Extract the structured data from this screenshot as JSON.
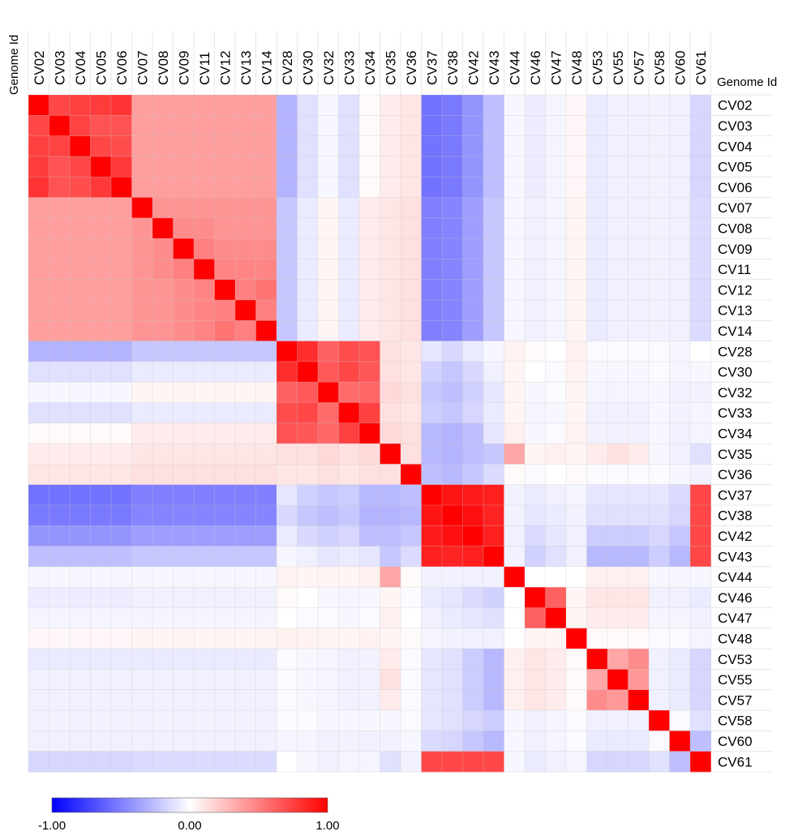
{
  "chart_data": {
    "type": "heatmap",
    "title": "",
    "xlabel": "Genome Id",
    "ylabel": "Genome Id",
    "labels": [
      "CV02",
      "CV03",
      "CV04",
      "CV05",
      "CV06",
      "CV07",
      "CV08",
      "CV09",
      "CV11",
      "CV12",
      "CV13",
      "CV14",
      "CV28",
      "CV30",
      "CV32",
      "CV33",
      "CV34",
      "CV35",
      "CV36",
      "CV37",
      "CV38",
      "CV42",
      "CV43",
      "CV44",
      "CV46",
      "CV47",
      "CV48",
      "CV53",
      "CV55",
      "CV57",
      "CV58",
      "CV60",
      "CV61"
    ],
    "color_scale": {
      "min": -1.0,
      "mid": 0.0,
      "max": 1.0,
      "min_label": "-1.00",
      "mid_label": "0.00",
      "max_label": "1.00",
      "min_color": "#0000ff",
      "mid_color": "#ffffff",
      "max_color": "#ff0000"
    },
    "values": [
      [
        1.0,
        0.72,
        0.75,
        0.77,
        0.8,
        0.38,
        0.38,
        0.38,
        0.38,
        0.38,
        0.38,
        0.38,
        -0.3,
        -0.12,
        -0.03,
        -0.12,
        0.02,
        0.08,
        0.1,
        -0.55,
        -0.52,
        -0.42,
        -0.25,
        -0.03,
        -0.07,
        -0.04,
        0.03,
        -0.08,
        -0.06,
        -0.06,
        -0.05,
        -0.06,
        -0.16
      ],
      [
        0.72,
        1.0,
        0.74,
        0.68,
        0.68,
        0.38,
        0.38,
        0.38,
        0.38,
        0.38,
        0.38,
        0.38,
        -0.3,
        -0.12,
        -0.03,
        -0.12,
        0.02,
        0.08,
        0.1,
        -0.55,
        -0.52,
        -0.42,
        -0.25,
        -0.03,
        -0.07,
        -0.04,
        0.03,
        -0.08,
        -0.06,
        -0.06,
        -0.05,
        -0.06,
        -0.16
      ],
      [
        0.75,
        0.74,
        1.0,
        0.72,
        0.7,
        0.38,
        0.38,
        0.38,
        0.38,
        0.38,
        0.38,
        0.38,
        -0.3,
        -0.12,
        -0.03,
        -0.12,
        0.02,
        0.08,
        0.1,
        -0.55,
        -0.52,
        -0.42,
        -0.25,
        -0.03,
        -0.07,
        -0.04,
        0.03,
        -0.08,
        -0.06,
        -0.06,
        -0.05,
        -0.06,
        -0.16
      ],
      [
        0.77,
        0.68,
        0.72,
        1.0,
        0.78,
        0.38,
        0.38,
        0.38,
        0.38,
        0.38,
        0.38,
        0.38,
        -0.3,
        -0.12,
        -0.03,
        -0.12,
        0.02,
        0.08,
        0.1,
        -0.55,
        -0.52,
        -0.42,
        -0.25,
        -0.03,
        -0.07,
        -0.04,
        0.03,
        -0.08,
        -0.06,
        -0.06,
        -0.05,
        -0.06,
        -0.16
      ],
      [
        0.8,
        0.68,
        0.7,
        0.78,
        1.0,
        0.38,
        0.38,
        0.38,
        0.38,
        0.38,
        0.38,
        0.38,
        -0.3,
        -0.12,
        -0.03,
        -0.12,
        0.02,
        0.08,
        0.1,
        -0.55,
        -0.52,
        -0.42,
        -0.25,
        -0.03,
        -0.07,
        -0.04,
        0.03,
        -0.08,
        -0.06,
        -0.06,
        -0.05,
        -0.06,
        -0.16
      ],
      [
        0.38,
        0.38,
        0.38,
        0.38,
        0.38,
        1.0,
        0.42,
        0.42,
        0.42,
        0.42,
        0.42,
        0.42,
        -0.22,
        -0.08,
        0.04,
        -0.08,
        0.08,
        0.1,
        0.12,
        -0.5,
        -0.48,
        -0.38,
        -0.22,
        -0.03,
        -0.06,
        -0.04,
        0.04,
        -0.08,
        -0.06,
        -0.06,
        -0.05,
        -0.06,
        -0.14
      ],
      [
        0.38,
        0.38,
        0.38,
        0.38,
        0.38,
        0.42,
        1.0,
        0.45,
        0.45,
        0.42,
        0.42,
        0.42,
        -0.22,
        -0.08,
        0.04,
        -0.08,
        0.08,
        0.1,
        0.12,
        -0.5,
        -0.48,
        -0.38,
        -0.22,
        -0.03,
        -0.06,
        -0.04,
        0.04,
        -0.08,
        -0.06,
        -0.06,
        -0.05,
        -0.06,
        -0.14
      ],
      [
        0.38,
        0.38,
        0.38,
        0.38,
        0.38,
        0.42,
        0.45,
        1.0,
        0.5,
        0.45,
        0.45,
        0.45,
        -0.22,
        -0.08,
        0.04,
        -0.08,
        0.08,
        0.1,
        0.12,
        -0.5,
        -0.48,
        -0.38,
        -0.22,
        -0.03,
        -0.06,
        -0.04,
        0.04,
        -0.08,
        -0.06,
        -0.06,
        -0.05,
        -0.06,
        -0.14
      ],
      [
        0.38,
        0.38,
        0.38,
        0.38,
        0.38,
        0.42,
        0.45,
        0.5,
        1.0,
        0.48,
        0.48,
        0.48,
        -0.22,
        -0.08,
        0.04,
        -0.08,
        0.08,
        0.1,
        0.12,
        -0.5,
        -0.48,
        -0.38,
        -0.22,
        -0.03,
        -0.06,
        -0.04,
        0.04,
        -0.08,
        -0.06,
        -0.06,
        -0.05,
        -0.06,
        -0.14
      ],
      [
        0.38,
        0.38,
        0.38,
        0.38,
        0.38,
        0.42,
        0.42,
        0.45,
        0.48,
        1.0,
        0.5,
        0.55,
        -0.22,
        -0.08,
        0.04,
        -0.08,
        0.08,
        0.1,
        0.12,
        -0.5,
        -0.48,
        -0.38,
        -0.22,
        -0.03,
        -0.06,
        -0.04,
        0.04,
        -0.08,
        -0.06,
        -0.06,
        -0.05,
        -0.06,
        -0.14
      ],
      [
        0.38,
        0.38,
        0.38,
        0.38,
        0.38,
        0.42,
        0.42,
        0.45,
        0.48,
        0.5,
        1.0,
        0.5,
        -0.22,
        -0.08,
        0.04,
        -0.08,
        0.08,
        0.1,
        0.12,
        -0.5,
        -0.48,
        -0.38,
        -0.22,
        -0.03,
        -0.06,
        -0.04,
        0.04,
        -0.08,
        -0.06,
        -0.06,
        -0.05,
        -0.06,
        -0.14
      ],
      [
        0.38,
        0.38,
        0.38,
        0.38,
        0.38,
        0.42,
        0.42,
        0.45,
        0.48,
        0.55,
        0.5,
        1.0,
        -0.22,
        -0.08,
        0.04,
        -0.08,
        0.08,
        0.1,
        0.12,
        -0.5,
        -0.48,
        -0.38,
        -0.22,
        -0.03,
        -0.06,
        -0.04,
        0.04,
        -0.08,
        -0.06,
        -0.06,
        -0.05,
        -0.06,
        -0.14
      ],
      [
        -0.3,
        -0.3,
        -0.3,
        -0.3,
        -0.3,
        -0.22,
        -0.22,
        -0.22,
        -0.22,
        -0.22,
        -0.22,
        -0.22,
        1.0,
        0.82,
        0.62,
        0.7,
        0.68,
        0.12,
        0.1,
        -0.1,
        -0.15,
        -0.08,
        -0.03,
        0.05,
        0.02,
        0.0,
        0.06,
        -0.02,
        -0.02,
        -0.02,
        -0.02,
        -0.04,
        0.0
      ],
      [
        -0.12,
        -0.12,
        -0.12,
        -0.12,
        -0.12,
        -0.08,
        -0.08,
        -0.08,
        -0.08,
        -0.08,
        -0.08,
        -0.08,
        0.82,
        1.0,
        0.65,
        0.72,
        0.66,
        0.12,
        0.1,
        -0.18,
        -0.22,
        -0.15,
        -0.06,
        0.04,
        0.0,
        -0.02,
        0.05,
        -0.03,
        -0.03,
        -0.03,
        -0.02,
        -0.04,
        -0.03
      ],
      [
        -0.03,
        -0.03,
        -0.03,
        -0.03,
        -0.03,
        0.04,
        0.04,
        0.04,
        0.04,
        0.04,
        0.04,
        0.04,
        0.62,
        0.65,
        1.0,
        0.58,
        0.6,
        0.15,
        0.12,
        -0.22,
        -0.25,
        -0.18,
        -0.1,
        0.04,
        -0.03,
        -0.02,
        0.04,
        -0.04,
        -0.04,
        -0.04,
        -0.03,
        -0.05,
        -0.05
      ],
      [
        -0.12,
        -0.12,
        -0.12,
        -0.12,
        -0.12,
        -0.08,
        -0.08,
        -0.08,
        -0.08,
        -0.08,
        -0.08,
        -0.08,
        0.7,
        0.72,
        0.58,
        1.0,
        0.75,
        0.12,
        0.1,
        -0.2,
        -0.22,
        -0.16,
        -0.08,
        0.04,
        -0.04,
        -0.03,
        0.04,
        -0.06,
        -0.06,
        -0.06,
        -0.03,
        -0.05,
        -0.04
      ],
      [
        0.02,
        0.02,
        0.02,
        0.02,
        0.02,
        0.08,
        0.08,
        0.08,
        0.08,
        0.08,
        0.08,
        0.08,
        0.68,
        0.66,
        0.6,
        0.75,
        1.0,
        0.14,
        0.12,
        -0.28,
        -0.3,
        -0.25,
        -0.1,
        0.06,
        -0.03,
        -0.02,
        0.05,
        -0.05,
        -0.05,
        -0.05,
        -0.03,
        -0.06,
        -0.04
      ],
      [
        0.08,
        0.08,
        0.08,
        0.08,
        0.08,
        0.1,
        0.1,
        0.1,
        0.1,
        0.1,
        0.1,
        0.1,
        0.12,
        0.12,
        0.15,
        0.12,
        0.14,
        1.0,
        0.12,
        -0.28,
        -0.3,
        -0.26,
        -0.22,
        0.35,
        0.04,
        0.06,
        0.04,
        0.08,
        0.12,
        0.08,
        -0.03,
        -0.05,
        -0.12
      ],
      [
        0.1,
        0.1,
        0.1,
        0.1,
        0.1,
        0.12,
        0.12,
        0.12,
        0.12,
        0.12,
        0.12,
        0.12,
        0.1,
        0.1,
        0.12,
        0.1,
        0.12,
        0.12,
        1.0,
        -0.25,
        -0.28,
        -0.22,
        -0.14,
        0.02,
        -0.02,
        0.0,
        0.02,
        -0.02,
        -0.02,
        -0.02,
        -0.02,
        -0.03,
        -0.05
      ],
      [
        -0.55,
        -0.55,
        -0.55,
        -0.55,
        -0.55,
        -0.5,
        -0.5,
        -0.5,
        -0.5,
        -0.5,
        -0.5,
        -0.5,
        -0.1,
        -0.18,
        -0.22,
        -0.2,
        -0.28,
        -0.28,
        -0.25,
        1.0,
        0.92,
        0.9,
        0.88,
        -0.05,
        -0.08,
        -0.06,
        -0.04,
        -0.1,
        -0.1,
        -0.1,
        -0.1,
        -0.14,
        0.72
      ],
      [
        -0.52,
        -0.52,
        -0.52,
        -0.52,
        -0.52,
        -0.48,
        -0.48,
        -0.48,
        -0.48,
        -0.48,
        -0.48,
        -0.48,
        -0.15,
        -0.22,
        -0.25,
        -0.22,
        -0.3,
        -0.3,
        -0.28,
        0.92,
        1.0,
        0.94,
        0.86,
        -0.05,
        -0.1,
        -0.08,
        -0.05,
        -0.12,
        -0.12,
        -0.12,
        -0.12,
        -0.16,
        0.72
      ],
      [
        -0.42,
        -0.42,
        -0.42,
        -0.42,
        -0.42,
        -0.38,
        -0.38,
        -0.38,
        -0.38,
        -0.38,
        -0.38,
        -0.38,
        -0.08,
        -0.15,
        -0.18,
        -0.16,
        -0.25,
        -0.26,
        -0.22,
        0.9,
        0.94,
        1.0,
        0.88,
        -0.06,
        -0.14,
        -0.1,
        -0.06,
        -0.2,
        -0.2,
        -0.2,
        -0.16,
        -0.22,
        0.72
      ],
      [
        -0.25,
        -0.25,
        -0.25,
        -0.25,
        -0.25,
        -0.22,
        -0.22,
        -0.22,
        -0.22,
        -0.22,
        -0.22,
        -0.22,
        -0.03,
        -0.06,
        -0.1,
        -0.08,
        -0.1,
        -0.22,
        -0.14,
        0.88,
        0.86,
        0.88,
        1.0,
        -0.05,
        -0.18,
        -0.12,
        -0.06,
        -0.28,
        -0.28,
        -0.28,
        -0.2,
        -0.28,
        0.72
      ],
      [
        -0.03,
        -0.03,
        -0.03,
        -0.03,
        -0.03,
        -0.03,
        -0.03,
        -0.03,
        -0.03,
        -0.03,
        -0.03,
        -0.03,
        0.05,
        0.04,
        0.04,
        0.04,
        0.06,
        0.35,
        0.02,
        -0.05,
        -0.05,
        -0.06,
        -0.05,
        1.0,
        0.0,
        0.0,
        0.0,
        0.06,
        0.06,
        0.06,
        -0.03,
        -0.03,
        -0.03
      ],
      [
        -0.07,
        -0.07,
        -0.07,
        -0.07,
        -0.07,
        -0.06,
        -0.06,
        -0.06,
        -0.06,
        -0.06,
        -0.06,
        -0.06,
        0.02,
        0.0,
        -0.03,
        -0.04,
        -0.03,
        0.04,
        -0.02,
        -0.08,
        -0.1,
        -0.14,
        -0.18,
        0.0,
        1.0,
        0.62,
        0.04,
        0.1,
        0.1,
        0.1,
        -0.06,
        -0.06,
        -0.08
      ],
      [
        -0.04,
        -0.04,
        -0.04,
        -0.04,
        -0.04,
        -0.04,
        -0.04,
        -0.04,
        -0.04,
        -0.04,
        -0.04,
        -0.04,
        0.0,
        -0.02,
        -0.02,
        -0.03,
        -0.02,
        0.06,
        0.0,
        -0.06,
        -0.08,
        -0.1,
        -0.12,
        0.0,
        0.62,
        1.0,
        0.04,
        0.08,
        0.08,
        0.08,
        -0.04,
        -0.04,
        -0.06
      ],
      [
        0.03,
        0.03,
        0.03,
        0.03,
        0.03,
        0.04,
        0.04,
        0.04,
        0.04,
        0.04,
        0.04,
        0.04,
        0.06,
        0.05,
        0.04,
        0.04,
        0.05,
        0.04,
        0.02,
        -0.04,
        -0.05,
        -0.06,
        -0.06,
        0.0,
        0.04,
        0.04,
        1.0,
        0.02,
        0.02,
        0.02,
        -0.02,
        -0.02,
        -0.04
      ],
      [
        -0.08,
        -0.08,
        -0.08,
        -0.08,
        -0.08,
        -0.08,
        -0.08,
        -0.08,
        -0.08,
        -0.08,
        -0.08,
        -0.08,
        -0.02,
        -0.03,
        -0.04,
        -0.06,
        -0.05,
        0.08,
        -0.02,
        -0.1,
        -0.12,
        -0.2,
        -0.28,
        0.06,
        0.1,
        0.08,
        0.02,
        1.0,
        0.35,
        0.45,
        -0.06,
        -0.08,
        -0.16
      ],
      [
        -0.06,
        -0.06,
        -0.06,
        -0.06,
        -0.06,
        -0.06,
        -0.06,
        -0.06,
        -0.06,
        -0.06,
        -0.06,
        -0.06,
        -0.02,
        -0.03,
        -0.04,
        -0.06,
        -0.05,
        0.12,
        -0.02,
        -0.1,
        -0.12,
        -0.2,
        -0.28,
        0.06,
        0.1,
        0.08,
        0.02,
        0.35,
        1.0,
        0.4,
        -0.06,
        -0.08,
        -0.16
      ],
      [
        -0.06,
        -0.06,
        -0.06,
        -0.06,
        -0.06,
        -0.06,
        -0.06,
        -0.06,
        -0.06,
        -0.06,
        -0.06,
        -0.06,
        -0.02,
        -0.03,
        -0.04,
        -0.06,
        -0.05,
        0.08,
        -0.02,
        -0.1,
        -0.12,
        -0.2,
        -0.28,
        0.06,
        0.1,
        0.08,
        0.02,
        0.45,
        0.4,
        1.0,
        -0.06,
        -0.08,
        -0.16
      ],
      [
        -0.05,
        -0.05,
        -0.05,
        -0.05,
        -0.05,
        -0.05,
        -0.05,
        -0.05,
        -0.05,
        -0.05,
        -0.05,
        -0.05,
        -0.02,
        -0.02,
        -0.03,
        -0.03,
        -0.03,
        -0.03,
        -0.02,
        -0.1,
        -0.12,
        -0.16,
        -0.2,
        -0.03,
        -0.06,
        -0.04,
        -0.02,
        -0.06,
        -0.06,
        -0.06,
        1.0,
        -0.02,
        -0.12
      ],
      [
        -0.06,
        -0.06,
        -0.06,
        -0.06,
        -0.06,
        -0.06,
        -0.06,
        -0.06,
        -0.06,
        -0.06,
        -0.06,
        -0.06,
        -0.04,
        -0.04,
        -0.05,
        -0.05,
        -0.06,
        -0.05,
        -0.03,
        -0.14,
        -0.16,
        -0.22,
        -0.28,
        -0.03,
        -0.06,
        -0.04,
        -0.02,
        -0.08,
        -0.08,
        -0.08,
        -0.02,
        1.0,
        -0.25
      ],
      [
        -0.16,
        -0.16,
        -0.16,
        -0.16,
        -0.16,
        -0.14,
        -0.14,
        -0.14,
        -0.14,
        -0.14,
        -0.14,
        -0.14,
        0.0,
        -0.03,
        -0.05,
        -0.04,
        -0.04,
        -0.12,
        -0.05,
        0.72,
        0.72,
        0.72,
        0.72,
        -0.03,
        -0.08,
        -0.06,
        -0.04,
        -0.16,
        -0.16,
        -0.16,
        -0.12,
        -0.25,
        1.0
      ]
    ]
  }
}
